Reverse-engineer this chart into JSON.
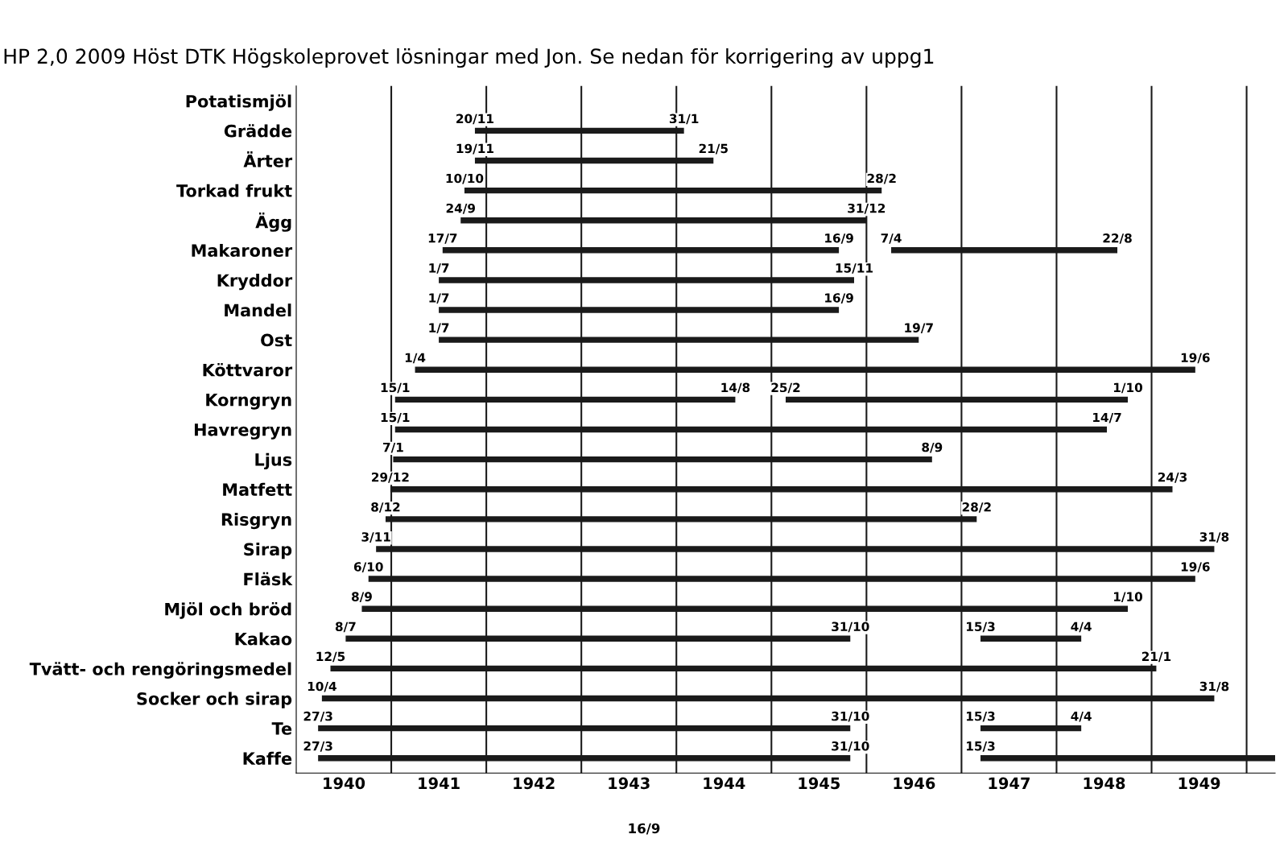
{
  "chart_data": {
    "type": "bar",
    "orientation": "horizontal",
    "title": "HP 2,0 2009 Höst DTK Högskoleprovet lösningar med Jon. Se nedan för korrigering av uppg1",
    "categories": [
      "Potatismjöl",
      "Grädde",
      "Ärter",
      "Torkad frukt",
      "Ägg",
      "Makaroner",
      "Kryddor",
      "Mandel",
      "Ost",
      "Köttvaror",
      "Korngryn",
      "Havregryn",
      "Ljus",
      "Matfett",
      "Risgryn",
      "Sirap",
      "Fläsk",
      "Mjöl och bröd",
      "Kakao",
      "Tvätt- och rengöringsmedel",
      "Socker och sirap",
      "Te",
      "Kaffe"
    ],
    "series": [
      {
        "color": "#1a1a1a",
        "base": [
          null,
          1941.88,
          1941.88,
          1941.77,
          1941.73,
          1941.54,
          1941.5,
          1941.5,
          1941.5,
          1941.25,
          1941.04,
          1941.04,
          1941.02,
          1940.99,
          1940.94,
          1940.84,
          1940.76,
          1940.69,
          1940.52,
          1940.36,
          1940.27,
          1940.23,
          1940.23
        ],
        "values": [
          null,
          2.2,
          2.51,
          4.39,
          4.27,
          4.17,
          4.37,
          4.21,
          5.05,
          8.21,
          3.58,
          7.49,
          5.67,
          8.23,
          6.22,
          8.82,
          8.7,
          8.06,
          5.31,
          8.69,
          9.39,
          5.6,
          5.6
        ]
      },
      {
        "color": "#1a1a1a",
        "base": [
          null,
          null,
          null,
          null,
          null,
          1946.26,
          null,
          null,
          null,
          null,
          1945.15,
          null,
          null,
          null,
          null,
          null,
          null,
          null,
          1947.2,
          null,
          null,
          1947.2,
          1947.2
        ],
        "values": [
          null,
          null,
          null,
          null,
          null,
          2.38,
          null,
          null,
          null,
          null,
          3.6,
          null,
          null,
          null,
          null,
          null,
          null,
          null,
          1.06,
          null,
          null,
          1.06,
          3.1
        ]
      }
    ],
    "xlim": [
      1940,
      1950.3
    ],
    "xticks": [
      {
        "value": 1940.5,
        "label": "1940"
      },
      {
        "value": 1941.5,
        "label": "1941"
      },
      {
        "value": 1942.5,
        "label": "1942"
      },
      {
        "value": 1943.5,
        "label": "1943"
      },
      {
        "value": 1944.5,
        "label": "1944"
      },
      {
        "value": 1945.5,
        "label": "1945"
      },
      {
        "value": 1946.5,
        "label": "1946"
      },
      {
        "value": 1947.5,
        "label": "1947"
      },
      {
        "value": 1948.5,
        "label": "1948"
      },
      {
        "value": 1949.5,
        "label": "1949"
      }
    ],
    "ref_lines": [
      {
        "axis": "x",
        "value": 1941,
        "color": "#1a1a1a"
      },
      {
        "axis": "x",
        "value": 1942,
        "color": "#1a1a1a"
      },
      {
        "axis": "x",
        "value": 1943,
        "color": "#1a1a1a"
      },
      {
        "axis": "x",
        "value": 1944,
        "color": "#1a1a1a"
      },
      {
        "axis": "x",
        "value": 1945,
        "color": "#1a1a1a"
      },
      {
        "axis": "x",
        "value": 1946,
        "color": "#1a1a1a"
      },
      {
        "axis": "x",
        "value": 1947,
        "color": "#1a1a1a"
      },
      {
        "axis": "x",
        "value": 1948,
        "color": "#1a1a1a"
      },
      {
        "axis": "x",
        "value": 1949,
        "color": "#1a1a1a"
      },
      {
        "axis": "x",
        "value": 1950,
        "color": "#1a1a1a"
      }
    ],
    "annotations": [
      "16/9",
      {
        "text": "20/11",
        "x": 1941.88,
        "y": "Grädde"
      },
      {
        "text": "31/1",
        "x": 1944.08,
        "y": "Grädde"
      },
      {
        "text": "19/11",
        "x": 1941.88,
        "y": "Ärter"
      },
      {
        "text": "21/5",
        "x": 1944.39,
        "y": "Ärter"
      },
      {
        "text": "10/10",
        "x": 1941.77,
        "y": "Torkad frukt"
      },
      {
        "text": "28/2",
        "x": 1946.16,
        "y": "Torkad frukt"
      },
      {
        "text": "24/9",
        "x": 1941.73,
        "y": "Ägg"
      },
      {
        "text": "31/12",
        "x": 1946.0,
        "y": "Ägg"
      },
      {
        "text": "17/7",
        "x": 1941.54,
        "y": "Makaroner"
      },
      {
        "text": "16/9",
        "x": 1945.71,
        "y": "Makaroner"
      },
      {
        "text": "7/4",
        "x": 1946.26,
        "y": "Makaroner"
      },
      {
        "text": "22/8",
        "x": 1948.64,
        "y": "Makaroner"
      },
      {
        "text": "1/7",
        "x": 1941.5,
        "y": "Kryddor"
      },
      {
        "text": "15/11",
        "x": 1945.87,
        "y": "Kryddor"
      },
      {
        "text": "1/7",
        "x": 1941.5,
        "y": "Mandel"
      },
      {
        "text": "16/9",
        "x": 1945.71,
        "y": "Mandel"
      },
      {
        "text": "1/7",
        "x": 1941.5,
        "y": "Ost"
      },
      {
        "text": "19/7",
        "x": 1946.55,
        "y": "Ost"
      },
      {
        "text": "1/4",
        "x": 1941.25,
        "y": "Köttvaror"
      },
      {
        "text": "19/6",
        "x": 1949.46,
        "y": "Köttvaror"
      },
      {
        "text": "15/1",
        "x": 1941.04,
        "y": "Korngryn"
      },
      {
        "text": "14/8",
        "x": 1944.62,
        "y": "Korngryn"
      },
      {
        "text": "25/2",
        "x": 1945.15,
        "y": "Korngryn"
      },
      {
        "text": "1/10",
        "x": 1948.75,
        "y": "Korngryn"
      },
      {
        "text": "15/1",
        "x": 1941.04,
        "y": "Havregryn"
      },
      {
        "text": "14/7",
        "x": 1948.53,
        "y": "Havregryn"
      },
      {
        "text": "7/1",
        "x": 1941.02,
        "y": "Ljus"
      },
      {
        "text": "8/9",
        "x": 1946.69,
        "y": "Ljus"
      },
      {
        "text": "29/12",
        "x": 1940.99,
        "y": "Matfett"
      },
      {
        "text": "24/3",
        "x": 1949.22,
        "y": "Matfett"
      },
      {
        "text": "8/12",
        "x": 1940.94,
        "y": "Risgryn"
      },
      {
        "text": "28/2",
        "x": 1947.16,
        "y": "Risgryn"
      },
      {
        "text": "3/11",
        "x": 1940.84,
        "y": "Sirap"
      },
      {
        "text": "31/8",
        "x": 1949.66,
        "y": "Sirap"
      },
      {
        "text": "6/10",
        "x": 1940.76,
        "y": "Fläsk"
      },
      {
        "text": "19/6",
        "x": 1949.46,
        "y": "Fläsk"
      },
      {
        "text": "8/9",
        "x": 1940.69,
        "y": "Mjöl och bröd"
      },
      {
        "text": "1/10",
        "x": 1948.75,
        "y": "Mjöl och bröd"
      },
      {
        "text": "8/7",
        "x": 1940.52,
        "y": "Kakao"
      },
      {
        "text": "31/10",
        "x": 1945.83,
        "y": "Kakao"
      },
      {
        "text": "15/3",
        "x": 1947.2,
        "y": "Kakao"
      },
      {
        "text": "4/4",
        "x": 1948.26,
        "y": "Kakao"
      },
      {
        "text": "12/5",
        "x": 1940.36,
        "y": "Tvätt- och rengöringsmedel"
      },
      {
        "text": "21/1",
        "x": 1949.05,
        "y": "Tvätt- och rengöringsmedel"
      },
      {
        "text": "10/4",
        "x": 1940.27,
        "y": "Socker och sirap"
      },
      {
        "text": "31/8",
        "x": 1949.66,
        "y": "Socker och sirap"
      },
      {
        "text": "27/3",
        "x": 1940.23,
        "y": "Te"
      },
      {
        "text": "31/10",
        "x": 1945.83,
        "y": "Te"
      },
      {
        "text": "15/3",
        "x": 1947.2,
        "y": "Te"
      },
      {
        "text": "4/4",
        "x": 1948.26,
        "y": "Te"
      },
      {
        "text": "27/3",
        "x": 1940.23,
        "y": "Kaffe"
      },
      {
        "text": "31/10",
        "x": 1945.83,
        "y": "Kaffe"
      },
      {
        "text": "15/3",
        "x": 1947.2,
        "y": "Kaffe"
      }
    ]
  }
}
